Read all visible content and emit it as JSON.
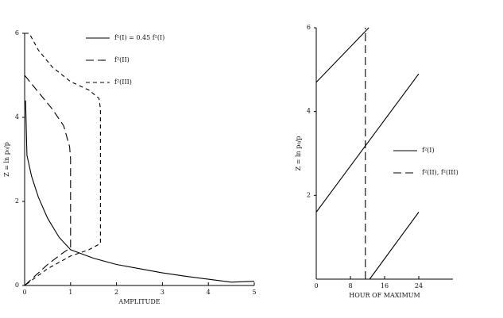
{
  "chart_data": [
    {
      "type": "line",
      "xlabel": "AMPLITUDE",
      "ylabel": "Z = ln p₀/p",
      "xlim": [
        0,
        5
      ],
      "xticks": [
        0,
        1,
        2,
        3,
        4,
        5
      ],
      "ylim": [
        0,
        6
      ],
      "yticks": [
        0,
        2,
        4,
        6
      ],
      "grid": false,
      "series": [
        {
          "name": "f¹(I) = 0.45 f²(I)",
          "color": "#000",
          "dash": "solid",
          "x": [
            0.02,
            0.05,
            0.15,
            0.3,
            0.5,
            0.75,
            1,
            1.5,
            2,
            2.5,
            3,
            3.5,
            4,
            4.5,
            5
          ],
          "values": [
            4.4,
            3.1,
            2.6,
            2.1,
            1.6,
            1.15,
            0.85,
            0.65,
            0.5,
            0.4,
            0.3,
            0.22,
            0.15,
            0.08,
            0.1
          ]
        },
        {
          "name": "f²(II)",
          "color": "#000",
          "dash": "long",
          "x": [
            0,
            0.3,
            0.6,
            0.85,
            0.98,
            1,
            1,
            0.8,
            0.5,
            0.2,
            0
          ],
          "values": [
            5,
            4.6,
            4.2,
            3.8,
            3.3,
            3,
            0.9,
            0.75,
            0.5,
            0.2,
            0
          ]
        },
        {
          "name": "f²(III)",
          "color": "#000",
          "dash": "short",
          "x": [
            0,
            0.1,
            0.3,
            0.6,
            1,
            1.4,
            1.62,
            1.65,
            1.65,
            1.4,
            1,
            0.5,
            0
          ],
          "values": [
            6,
            6,
            5.6,
            5.2,
            4.85,
            4.65,
            4.45,
            4.2,
            1,
            0.85,
            0.7,
            0.4,
            0
          ]
        }
      ]
    },
    {
      "type": "line",
      "xlabel": "HOUR OF MAXIMUM",
      "ylabel": "Z = ln p₀/p",
      "xlim": [
        0,
        32
      ],
      "xticks": [
        0,
        8,
        16,
        24
      ],
      "ylim": [
        0,
        6
      ],
      "yticks": [
        2,
        4,
        6
      ],
      "grid": false,
      "series": [
        {
          "name": "f²(I)",
          "color": "#000",
          "dash": "solid",
          "x": [
            0,
            12.3,
            null,
            0,
            24,
            null,
            12.5,
            24
          ],
          "values": [
            4.7,
            6,
            null,
            1.6,
            4.9,
            null,
            0,
            1.6
          ]
        },
        {
          "name": "f²(II), f²(III)",
          "color": "#000",
          "dash": "long",
          "x": [
            11.5,
            11.5
          ],
          "values": [
            0,
            6
          ]
        }
      ]
    }
  ]
}
